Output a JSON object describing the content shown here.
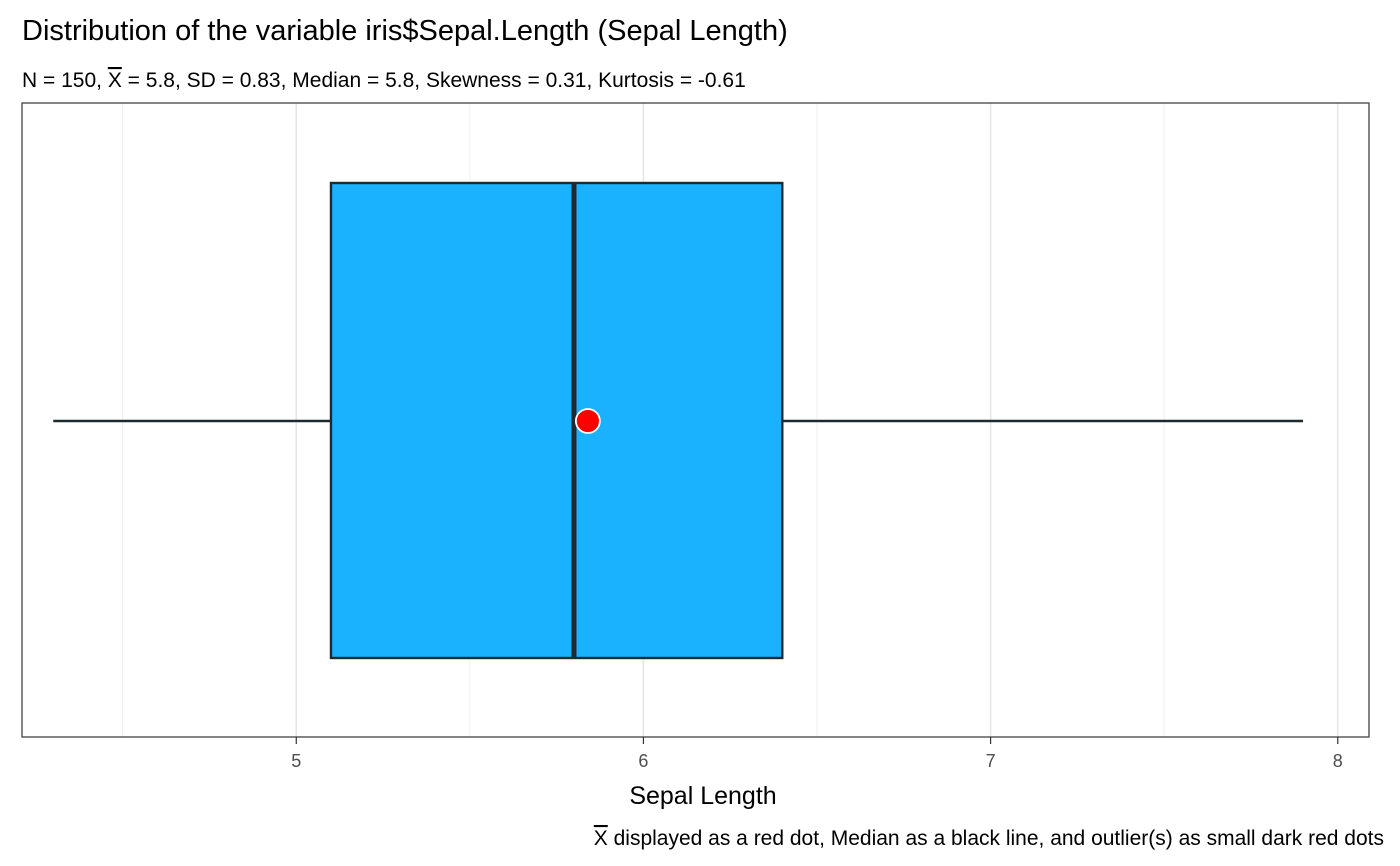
{
  "chart_data": {
    "type": "boxplot",
    "title": "Distribution of the variable iris$Sepal.Length (Sepal Length)",
    "subtitle": {
      "prefix": "N = 150, ",
      "mean_symbol": "X",
      "suffix": " = 5.8, SD = 0.83, Median = 5.8, Skewness = 0.31, Kurtosis = -0.61"
    },
    "xlabel": "Sepal Length",
    "ylabel": "",
    "xlim": [
      4.21,
      8.09
    ],
    "x_ticks": [
      5,
      6,
      7,
      8
    ],
    "x_tick_labels": [
      "5",
      "6",
      "7",
      "8"
    ],
    "x_minor_ticks": [
      4.5,
      5.5,
      6.5,
      7.5
    ],
    "grid": true,
    "summary": {
      "n": 150,
      "min": 4.3,
      "q1": 5.1,
      "median": 5.8,
      "mean": 5.84,
      "q3": 6.4,
      "max": 7.9,
      "outliers": []
    },
    "box_color": "#1AB2FF",
    "outline_color": "#1f2a2e",
    "mean_color": "#FF0000",
    "caption": {
      "mean_symbol": "X",
      "text": " displayed as a red dot, Median as a black line, and outlier(s) as small dark red dots"
    }
  }
}
